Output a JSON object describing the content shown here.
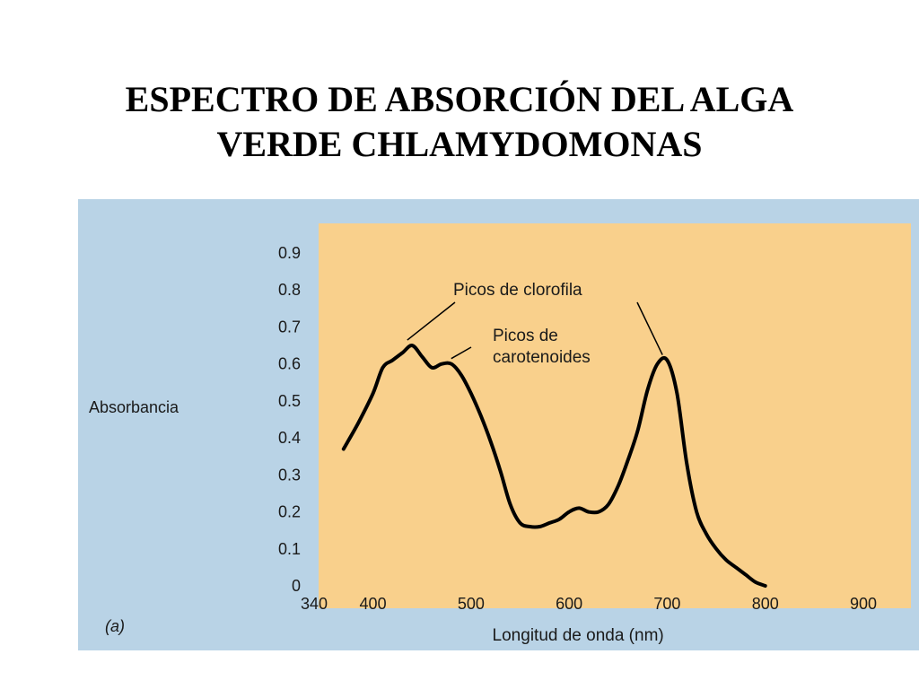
{
  "slide": {
    "title_line1": "ESPECTRO DE ABSORCIÓN DEL ALGA",
    "title_line2": "VERDE CHLAMYDOMONAS"
  },
  "colors": {
    "background_scan": "#b9d3e6",
    "plot_area": "#f9d08c",
    "curve": "#000000",
    "text": "#1a1a1a"
  },
  "chart_data": {
    "type": "line",
    "panel_label": "(a)",
    "xlabel": "Longitud de onda (nm)",
    "ylabel": "Absorbancia",
    "xlim": [
      340,
      900
    ],
    "ylim": [
      0,
      0.9
    ],
    "x_ticks": [
      340,
      400,
      500,
      600,
      700,
      800,
      900
    ],
    "y_ticks": [
      0,
      0.1,
      0.2,
      0.3,
      0.4,
      0.5,
      0.6,
      0.7,
      0.8,
      0.9
    ],
    "y_tick_labels": [
      "0",
      "0.1",
      "0.2",
      "0.3",
      "0.4",
      "0.5",
      "0.6",
      "0.7",
      "0.8",
      "0.9"
    ],
    "grid": false,
    "series": [
      {
        "x": [
          370,
          385,
          400,
          410,
          420,
          430,
          440,
          450,
          460,
          470,
          480,
          490,
          500,
          510,
          520,
          530,
          540,
          550,
          560,
          570,
          580,
          590,
          600,
          610,
          620,
          630,
          640,
          650,
          660,
          670,
          680,
          690,
          700,
          710,
          720,
          730,
          740,
          750,
          760,
          770,
          780,
          790,
          800
        ],
        "y": [
          0.37,
          0.44,
          0.52,
          0.59,
          0.61,
          0.63,
          0.65,
          0.62,
          0.59,
          0.6,
          0.6,
          0.57,
          0.52,
          0.46,
          0.39,
          0.31,
          0.22,
          0.17,
          0.16,
          0.16,
          0.17,
          0.18,
          0.2,
          0.21,
          0.2,
          0.2,
          0.22,
          0.27,
          0.34,
          0.42,
          0.53,
          0.6,
          0.61,
          0.52,
          0.33,
          0.2,
          0.14,
          0.1,
          0.07,
          0.05,
          0.03,
          0.01,
          0.0
        ]
      }
    ],
    "annotations": [
      {
        "text": "Picos de clorofila",
        "lines": [
          "Picos de clorofila"
        ],
        "points_to": [
          [
            435,
            0.65
          ],
          [
            697,
            0.61
          ]
        ]
      },
      {
        "text": "Picos de carotenoides",
        "lines": [
          "Picos de",
          "carotenoides"
        ],
        "points_to": [
          [
            478,
            0.6
          ]
        ]
      }
    ]
  }
}
